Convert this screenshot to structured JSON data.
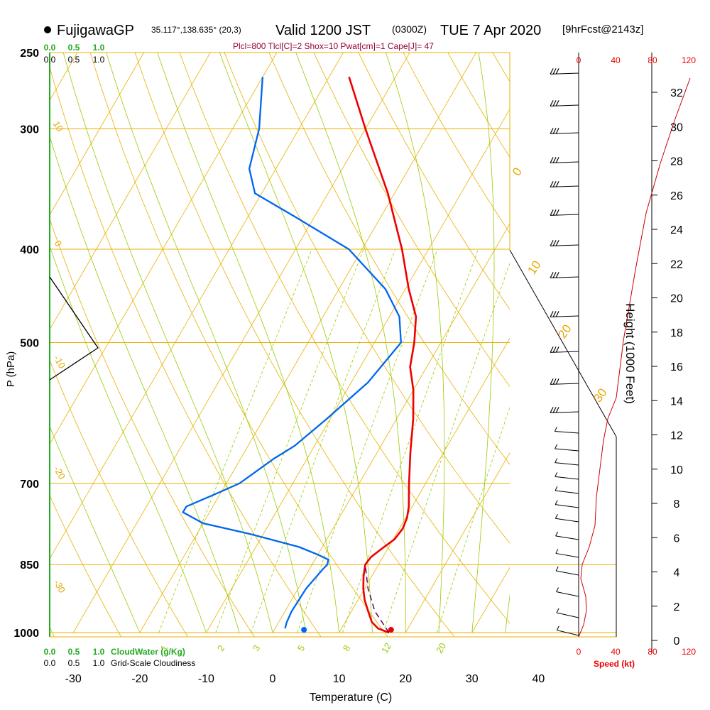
{
  "header": {
    "station": "FujigawaGP",
    "coords": "35.117°,138.635° (20,3)",
    "valid": "Valid 1200 JST",
    "utc": "(0300Z)",
    "date": "TUE 7 Apr 2020",
    "forecast": "[9hrFcst@2143z]",
    "stability": "Plcl=800 Tlcl[C]=2 Shox=10 Pwat[cm]=1 Cape[J]= 47"
  },
  "colors": {
    "temperature": "#ee0000",
    "dewpoint": "#0066ee",
    "isobar": "#e8b000",
    "isotherm": "#e8b000",
    "dry_adiabat": "#e8b000",
    "moist_adiabat": "#99cc00",
    "mixing_ratio": "#99cc00",
    "parcel": "#660066",
    "cloud_water": "#22aa22",
    "wind_speed": "#cc0000"
  },
  "chart_data": {
    "type": "skew-t",
    "xlabel": "Temperature (C)",
    "ylabel": "P (hPa)",
    "y2label": "Height (1000 Feet)",
    "pressure_ticks": [
      "250",
      "300",
      "400",
      "500",
      "700",
      "850",
      "1000"
    ],
    "pressure_values": [
      250,
      300,
      400,
      500,
      700,
      850,
      1000
    ],
    "temp_ticks": [
      "-30",
      "-20",
      "-10",
      "0",
      "10",
      "20",
      "30",
      "40"
    ],
    "temp_values": [
      -30,
      -20,
      -10,
      0,
      10,
      20,
      30,
      40
    ],
    "height_ticks": [
      "0",
      "2",
      "4",
      "6",
      "8",
      "10",
      "12",
      "14",
      "16",
      "18",
      "20",
      "22",
      "24",
      "26",
      "28",
      "30",
      "32"
    ],
    "height_values": [
      0,
      2,
      4,
      6,
      8,
      10,
      12,
      14,
      16,
      18,
      20,
      22,
      24,
      26,
      28,
      30,
      32
    ],
    "temperature_profile": [
      {
        "p": 1000,
        "t": 17.5
      },
      {
        "p": 990,
        "t": 15.5
      },
      {
        "p": 975,
        "t": 14.0
      },
      {
        "p": 950,
        "t": 12.5
      },
      {
        "p": 925,
        "t": 11.0
      },
      {
        "p": 900,
        "t": 9.8
      },
      {
        "p": 875,
        "t": 8.8
      },
      {
        "p": 850,
        "t": 8.0
      },
      {
        "p": 835,
        "t": 8.2
      },
      {
        "p": 820,
        "t": 9.0
      },
      {
        "p": 800,
        "t": 10.2
      },
      {
        "p": 780,
        "t": 10.5
      },
      {
        "p": 760,
        "t": 10.2
      },
      {
        "p": 740,
        "t": 9.5
      },
      {
        "p": 700,
        "t": 7.5
      },
      {
        "p": 650,
        "t": 5.0
      },
      {
        "p": 600,
        "t": 2.5
      },
      {
        "p": 560,
        "t": 0.0
      },
      {
        "p": 530,
        "t": -2.5
      },
      {
        "p": 500,
        "t": -4.0
      },
      {
        "p": 470,
        "t": -6.0
      },
      {
        "p": 440,
        "t": -9.5
      },
      {
        "p": 400,
        "t": -14.0
      },
      {
        "p": 350,
        "t": -21.0
      },
      {
        "p": 300,
        "t": -30.0
      },
      {
        "p": 265,
        "t": -37.0
      }
    ],
    "dewpoint_profile": [
      {
        "p": 990,
        "t": 1.5
      },
      {
        "p": 975,
        "t": 1.2
      },
      {
        "p": 950,
        "t": 1.0
      },
      {
        "p": 900,
        "t": 1.2
      },
      {
        "p": 860,
        "t": 2.0
      },
      {
        "p": 850,
        "t": 2.3
      },
      {
        "p": 840,
        "t": 2.0
      },
      {
        "p": 830,
        "t": 0.0
      },
      {
        "p": 815,
        "t": -3.5
      },
      {
        "p": 790,
        "t": -12.0
      },
      {
        "p": 770,
        "t": -20.0
      },
      {
        "p": 750,
        "t": -24.0
      },
      {
        "p": 740,
        "t": -24.0
      },
      {
        "p": 720,
        "t": -21.0
      },
      {
        "p": 700,
        "t": -18.0
      },
      {
        "p": 660,
        "t": -15.0
      },
      {
        "p": 640,
        "t": -13.0
      },
      {
        "p": 600,
        "t": -10.5
      },
      {
        "p": 550,
        "t": -7.5
      },
      {
        "p": 500,
        "t": -6.0
      },
      {
        "p": 470,
        "t": -8.5
      },
      {
        "p": 440,
        "t": -13.0
      },
      {
        "p": 400,
        "t": -22.0
      },
      {
        "p": 370,
        "t": -33.0
      },
      {
        "p": 350,
        "t": -41.0
      },
      {
        "p": 330,
        "t": -44.0
      },
      {
        "p": 300,
        "t": -46.0
      },
      {
        "p": 265,
        "t": -50.0
      }
    ],
    "parcel_path": [
      {
        "p": 1000,
        "t": 17.5
      },
      {
        "p": 950,
        "t": 13.5
      },
      {
        "p": 900,
        "t": 10.5
      },
      {
        "p": 850,
        "t": 8.0
      }
    ],
    "surface_temp": 17.5,
    "surface_dewpoint": 4.5,
    "dry_adiabat_labels": [
      "-30",
      "-20",
      "-10",
      "0",
      "10",
      "20",
      "30"
    ],
    "adiabat_labels_upper": [
      "0",
      "10",
      "20",
      "30"
    ],
    "adiabat_labels_left": [
      "10",
      "0",
      "-10",
      "-20",
      "-30"
    ],
    "mixing_ratio_labels": [
      "1",
      "2",
      "3",
      "5",
      "8",
      "12",
      "20"
    ],
    "wind_speed_ticks": [
      "0",
      "40",
      "80",
      "120"
    ],
    "wind_speed_label": "Speed (kt)",
    "cloud_water_ticks": [
      "0.0",
      "0.5",
      "1.0"
    ],
    "cloud_water_label": "CloudWater (g/Kg)",
    "cloudiness_ticks": [
      "0.0",
      "0.5",
      "1.0"
    ],
    "cloudiness_label": "Grid-Scale Cloudiness"
  }
}
